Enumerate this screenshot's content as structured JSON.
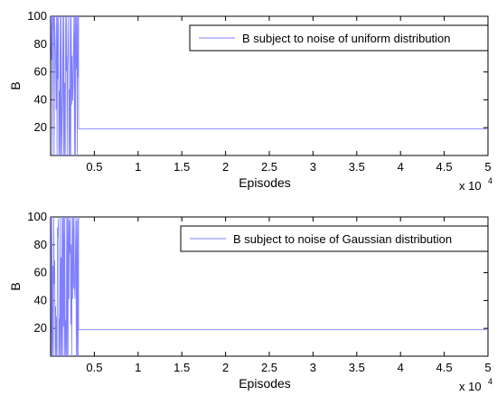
{
  "chart_data": [
    {
      "type": "line",
      "xlabel": "Episodes",
      "ylabel": "B",
      "x_multiplier": "x 10",
      "x_multiplier_exp": "4",
      "xlim": [
        0,
        5
      ],
      "ylim": [
        0,
        100
      ],
      "xticks": [
        "0.5",
        "1",
        "1.5",
        "2",
        "2.5",
        "3",
        "3.5",
        "4",
        "4.5",
        "5"
      ],
      "yticks": [
        "20",
        "40",
        "60",
        "80",
        "100"
      ],
      "grid": false,
      "legend_position": "top-right",
      "color": "#7f7fff",
      "series": [
        {
          "name": "B subject to noise of uniform distribution",
          "noisy_segment_end_x": 0.32,
          "steady_value": 19
        }
      ]
    },
    {
      "type": "line",
      "xlabel": "Episodes",
      "ylabel": "B",
      "x_multiplier": "x 10",
      "x_multiplier_exp": "4",
      "xlim": [
        0,
        5
      ],
      "ylim": [
        0,
        100
      ],
      "xticks": [
        "0.5",
        "1",
        "1.5",
        "2",
        "2.5",
        "3",
        "3.5",
        "4",
        "4.5",
        "5"
      ],
      "yticks": [
        "20",
        "40",
        "60",
        "80",
        "100"
      ],
      "grid": false,
      "legend_position": "top-right",
      "color": "#7f7fff",
      "series": [
        {
          "name": "B subject to noise of Gaussian distribution",
          "noisy_segment_end_x": 0.32,
          "steady_value": 19
        }
      ]
    }
  ]
}
